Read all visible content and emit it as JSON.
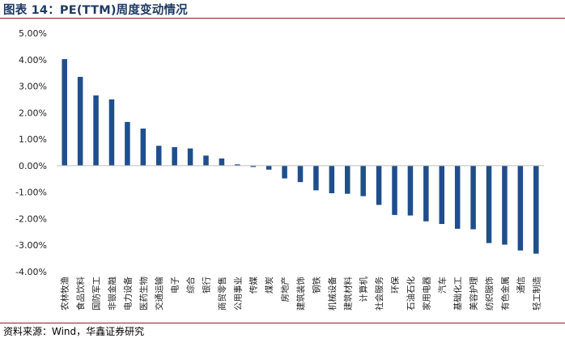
{
  "header": {
    "title": "图表 14：PE(TTM)周度变动情况"
  },
  "footer": {
    "source": "资料来源：Wind，华鑫证券研究"
  },
  "colors": {
    "bar": "#1f4e8c",
    "title": "#1f3b63",
    "rule": "#8a1f1f"
  },
  "chart_data": {
    "type": "bar",
    "title": "PE(TTM)周度变动情况",
    "xlabel": "",
    "ylabel": "",
    "ylim": [
      -4,
      5
    ],
    "yticks": [
      5,
      4,
      3,
      2,
      1,
      0,
      -1,
      -2,
      -3,
      -4
    ],
    "ytick_labels": [
      "5.00%",
      "4.00%",
      "3.00%",
      "2.00%",
      "1.00%",
      "0.00%",
      "-1.00%",
      "-2.00%",
      "-3.00%",
      "-4.00%"
    ],
    "unit": "%",
    "grid": false,
    "legend": "none",
    "categories": [
      "农林牧渔",
      "食品饮料",
      "国防军工",
      "非银金融",
      "电力设备",
      "医药生物",
      "交通运输",
      "电子",
      "综合",
      "银行",
      "商贸零售",
      "公用事业",
      "传媒",
      "煤炭",
      "房地产",
      "建筑装饰",
      "钢铁",
      "机械设备",
      "建筑材料",
      "计算机",
      "社会服务",
      "环保",
      "石油石化",
      "家用电器",
      "汽车",
      "基础化工",
      "美容护理",
      "纺织服饰",
      "有色金属",
      "通信",
      "轻工制造"
    ],
    "values": [
      4.02,
      3.35,
      2.65,
      2.5,
      1.65,
      1.4,
      0.75,
      0.7,
      0.65,
      0.38,
      0.27,
      0.05,
      -0.05,
      -0.15,
      -0.48,
      -0.62,
      -0.93,
      -1.04,
      -1.06,
      -1.15,
      -1.48,
      -1.86,
      -1.88,
      -2.1,
      -2.2,
      -2.38,
      -2.4,
      -2.92,
      -2.98,
      -3.2,
      -3.32
    ]
  }
}
